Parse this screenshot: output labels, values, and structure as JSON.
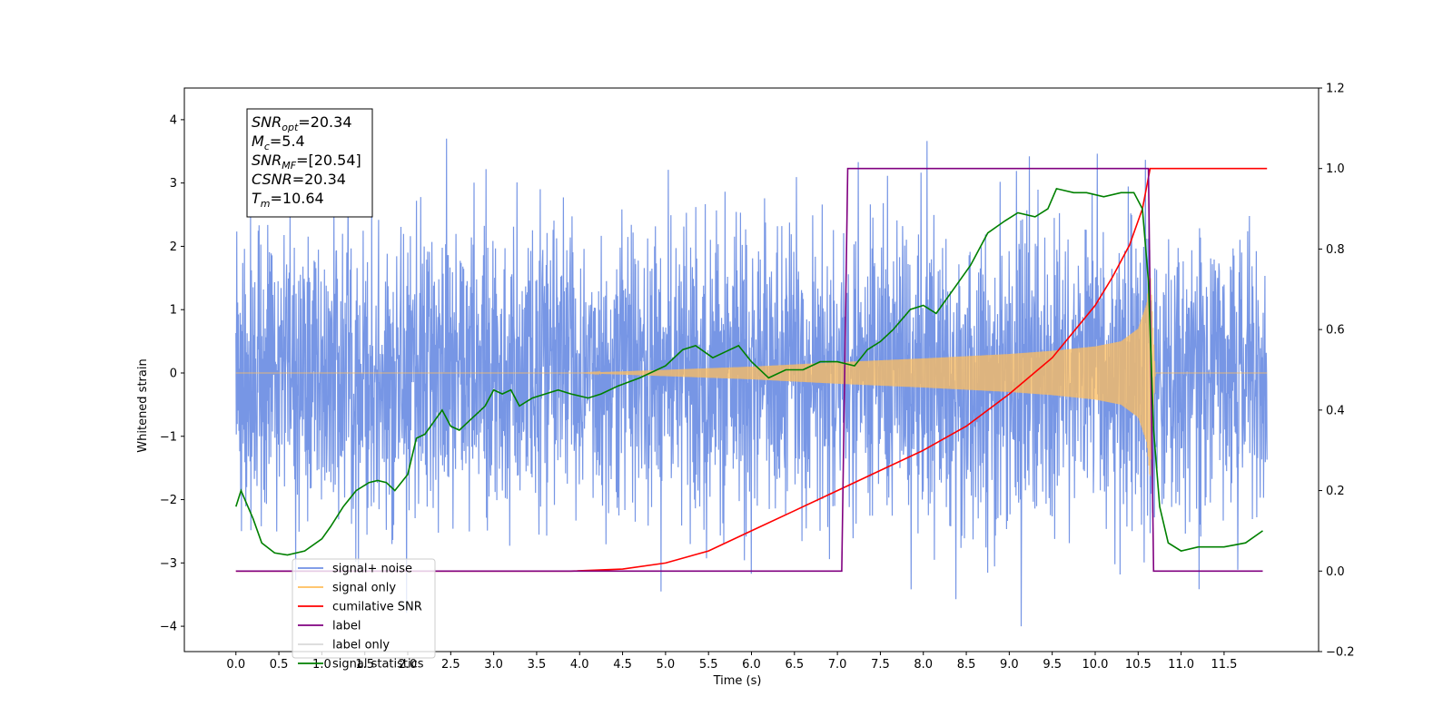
{
  "chart_data": {
    "type": "line",
    "title": "",
    "xlabel": "Time (s)",
    "ylabel": "Whitened strain",
    "y2label": "",
    "xlim": [
      -0.6,
      12.6
    ],
    "ylim": [
      -4.4,
      4.5
    ],
    "y2lim": [
      -0.2,
      1.2
    ],
    "x_ticks": [
      0.0,
      0.5,
      1.0,
      1.5,
      2.0,
      2.5,
      3.0,
      3.5,
      4.0,
      4.5,
      5.0,
      5.5,
      6.0,
      6.5,
      7.0,
      7.5,
      8.0,
      8.5,
      9.0,
      9.5,
      10.0,
      10.5,
      11.0,
      11.5
    ],
    "x_tick_labels": [
      "0.0",
      "0.5",
      "1.0",
      "1.5",
      "2.0",
      "2.5",
      "3.0",
      "3.5",
      "4.0",
      "4.5",
      "5.0",
      "5.5",
      "6.0",
      "6.5",
      "7.0",
      "7.5",
      "8.0",
      "8.5",
      "9.0",
      "9.5",
      "10.0",
      "10.5",
      "11.0",
      "11.5"
    ],
    "y_ticks": [
      -4,
      -3,
      -2,
      -1,
      0,
      1,
      2,
      3,
      4
    ],
    "y_tick_labels": [
      "−4",
      "−3",
      "−2",
      "−1",
      "0",
      "1",
      "2",
      "3",
      "4"
    ],
    "y2_ticks": [
      -0.2,
      0.0,
      0.2,
      0.4,
      0.6,
      0.8,
      1.0,
      1.2
    ],
    "y2_tick_labels": [
      "−0.2",
      "0.0",
      "0.2",
      "0.4",
      "0.6",
      "0.8",
      "1.0",
      "1.2"
    ],
    "grid": false,
    "legend_position": "lower-left",
    "annotation": {
      "lines": [
        {
          "main": "SNR",
          "sub": "opt",
          "rest": "=20.34"
        },
        {
          "main": "M",
          "sub": "c",
          "rest": "=5.4"
        },
        {
          "main": "SNR",
          "sub": "MF",
          "rest": "=[20.54]"
        },
        {
          "main": "CSNR",
          "sub": "",
          "rest": "=20.34"
        },
        {
          "main": "T",
          "sub": "m",
          "rest": "=10.64"
        }
      ]
    },
    "legend": [
      {
        "label": "signal+ noise",
        "color": "#7090e4"
      },
      {
        "label": "signal only",
        "color": "#ffbe5c"
      },
      {
        "label": "cumilative SNR",
        "color": "#ff0000"
      },
      {
        "label": "label",
        "color": "#800080"
      },
      {
        "label": "label only",
        "color": "#d9d9d9"
      },
      {
        "label": "signal statistics",
        "color": "#008000"
      }
    ],
    "series": [
      {
        "name": "signal+ noise",
        "axis": "left",
        "color": "#7090e4",
        "x_range": [
          0.0,
          12.0
        ],
        "noise_std": 1.15,
        "peak_max": 4.1,
        "peak_min": -4.0
      },
      {
        "name": "signal only",
        "axis": "left",
        "color": "#ffbe5c",
        "x_range": [
          0.0,
          12.0
        ],
        "envelope_x": [
          0.0,
          4.0,
          5.0,
          6.0,
          7.0,
          8.0,
          9.0,
          9.5,
          10.0,
          10.3,
          10.5,
          10.6,
          10.64,
          10.7,
          12.0
        ],
        "envelope_y": [
          0.0,
          0.0,
          0.05,
          0.1,
          0.17,
          0.23,
          0.3,
          0.35,
          0.42,
          0.5,
          0.7,
          1.1,
          1.7,
          0.0,
          0.0
        ]
      },
      {
        "name": "cumilative SNR",
        "axis": "right",
        "color": "#ff0000",
        "x": [
          0.0,
          3.9,
          4.5,
          5.0,
          5.5,
          6.0,
          6.5,
          7.0,
          7.5,
          8.0,
          8.5,
          9.0,
          9.5,
          10.0,
          10.2,
          10.4,
          10.55,
          10.64,
          12.0
        ],
        "values": [
          0.0,
          0.0,
          0.005,
          0.02,
          0.05,
          0.1,
          0.15,
          0.2,
          0.25,
          0.3,
          0.36,
          0.44,
          0.53,
          0.66,
          0.73,
          0.81,
          0.9,
          1.0,
          1.0
        ]
      },
      {
        "name": "label",
        "axis": "right",
        "color": "#800080",
        "x": [
          0.0,
          7.05,
          7.12,
          10.62,
          10.68,
          11.95
        ],
        "values": [
          0.0,
          0.0,
          1.0,
          1.0,
          0.0,
          0.0
        ]
      },
      {
        "name": "signal statistics",
        "axis": "right",
        "color": "#008000",
        "x": [
          0.0,
          0.06,
          0.2,
          0.3,
          0.45,
          0.6,
          0.8,
          1.0,
          1.1,
          1.25,
          1.4,
          1.55,
          1.65,
          1.75,
          1.85,
          2.0,
          2.1,
          2.2,
          2.3,
          2.4,
          2.5,
          2.6,
          2.75,
          2.9,
          3.0,
          3.1,
          3.2,
          3.3,
          3.45,
          3.6,
          3.75,
          3.9,
          4.1,
          4.25,
          4.45,
          4.7,
          5.0,
          5.2,
          5.35,
          5.55,
          5.75,
          5.85,
          6.0,
          6.2,
          6.4,
          6.5,
          6.6,
          6.8,
          7.0,
          7.2,
          7.35,
          7.5,
          7.65,
          7.85,
          8.0,
          8.15,
          8.35,
          8.55,
          8.75,
          8.95,
          9.1,
          9.3,
          9.45,
          9.55,
          9.75,
          9.9,
          10.1,
          10.3,
          10.45,
          10.55,
          10.62,
          10.68,
          10.75,
          10.85,
          11.0,
          11.2,
          11.5,
          11.75,
          11.95
        ],
        "values": [
          0.16,
          0.2,
          0.13,
          0.07,
          0.045,
          0.04,
          0.05,
          0.08,
          0.11,
          0.16,
          0.2,
          0.22,
          0.225,
          0.22,
          0.2,
          0.24,
          0.33,
          0.34,
          0.37,
          0.4,
          0.36,
          0.35,
          0.38,
          0.41,
          0.45,
          0.44,
          0.45,
          0.41,
          0.43,
          0.44,
          0.45,
          0.44,
          0.43,
          0.44,
          0.46,
          0.48,
          0.51,
          0.55,
          0.56,
          0.53,
          0.55,
          0.56,
          0.52,
          0.48,
          0.5,
          0.5,
          0.5,
          0.52,
          0.52,
          0.51,
          0.55,
          0.57,
          0.6,
          0.65,
          0.66,
          0.64,
          0.7,
          0.76,
          0.84,
          0.87,
          0.89,
          0.88,
          0.9,
          0.95,
          0.94,
          0.94,
          0.93,
          0.94,
          0.94,
          0.9,
          0.72,
          0.35,
          0.16,
          0.07,
          0.05,
          0.06,
          0.06,
          0.07,
          0.1
        ]
      }
    ]
  }
}
